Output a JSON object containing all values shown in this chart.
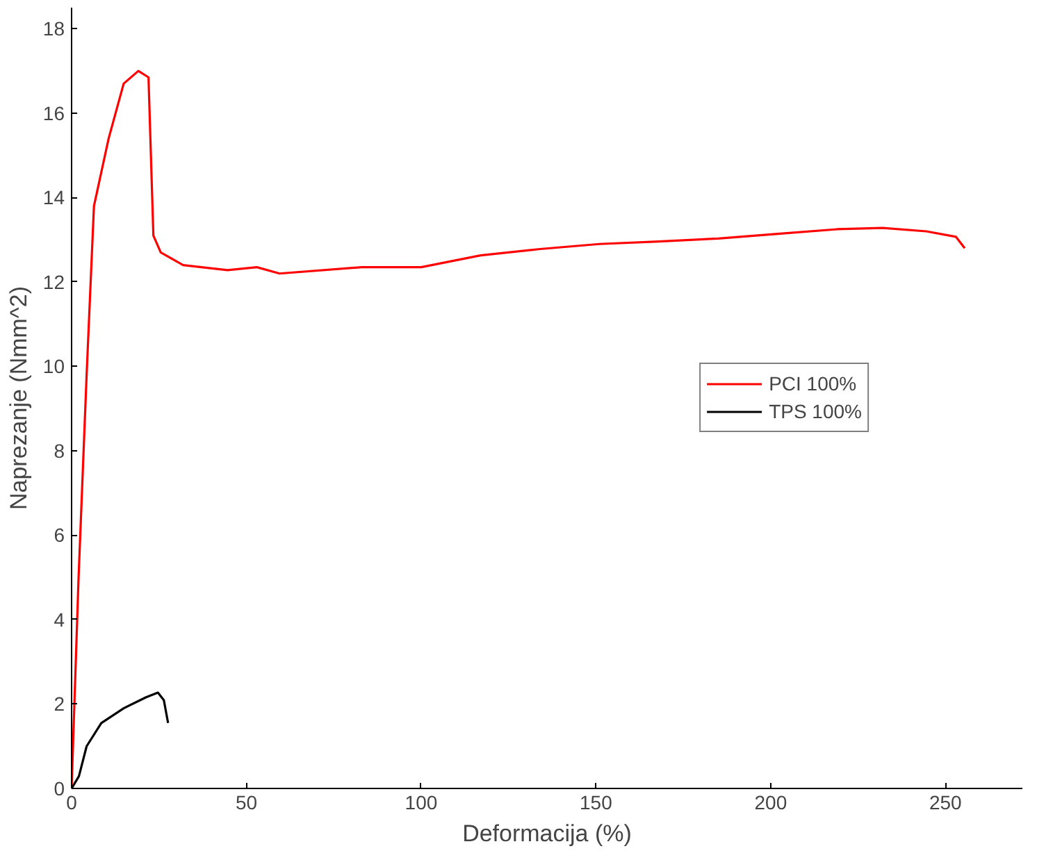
{
  "chart_data": {
    "type": "line",
    "xlabel": "Deformacija (%)",
    "ylabel": "Naprezanje (Nmm^2)",
    "xlim": [
      0,
      272
    ],
    "ylim": [
      0,
      18.5
    ],
    "xticks": [
      0,
      50,
      100,
      150,
      200,
      250
    ],
    "yticks": [
      0,
      2,
      4,
      6,
      8,
      10,
      12,
      14,
      16,
      18
    ],
    "grid": false,
    "legend": "right",
    "line_style": "solid",
    "series": [
      {
        "name": "PCI 100%",
        "color": "#ff0000",
        "x": [
          0,
          2,
          4.3,
          6.4,
          10.6,
          14.9,
          19.1,
          22,
          23.4,
          25.5,
          31.9,
          44.6,
          53,
          59.5,
          83,
          100,
          117,
          134,
          151,
          168,
          185,
          202,
          219,
          232,
          244.5,
          253,
          255.5
        ],
        "values": [
          0,
          5,
          9.8,
          13.8,
          15.4,
          16.7,
          17.0,
          16.85,
          13.1,
          12.7,
          12.4,
          12.28,
          12.35,
          12.2,
          12.35,
          12.35,
          12.63,
          12.78,
          12.9,
          12.96,
          13.03,
          13.14,
          13.25,
          13.28,
          13.2,
          13.07,
          12.8
        ]
      },
      {
        "name": "TPS 100%",
        "color": "#000000",
        "x": [
          0,
          2.1,
          4.3,
          8.5,
          14.9,
          21.3,
          24.7,
          26.4,
          27.6
        ],
        "values": [
          0,
          0.29,
          1.0,
          1.55,
          1.9,
          2.16,
          2.27,
          2.09,
          1.55
        ]
      }
    ]
  }
}
